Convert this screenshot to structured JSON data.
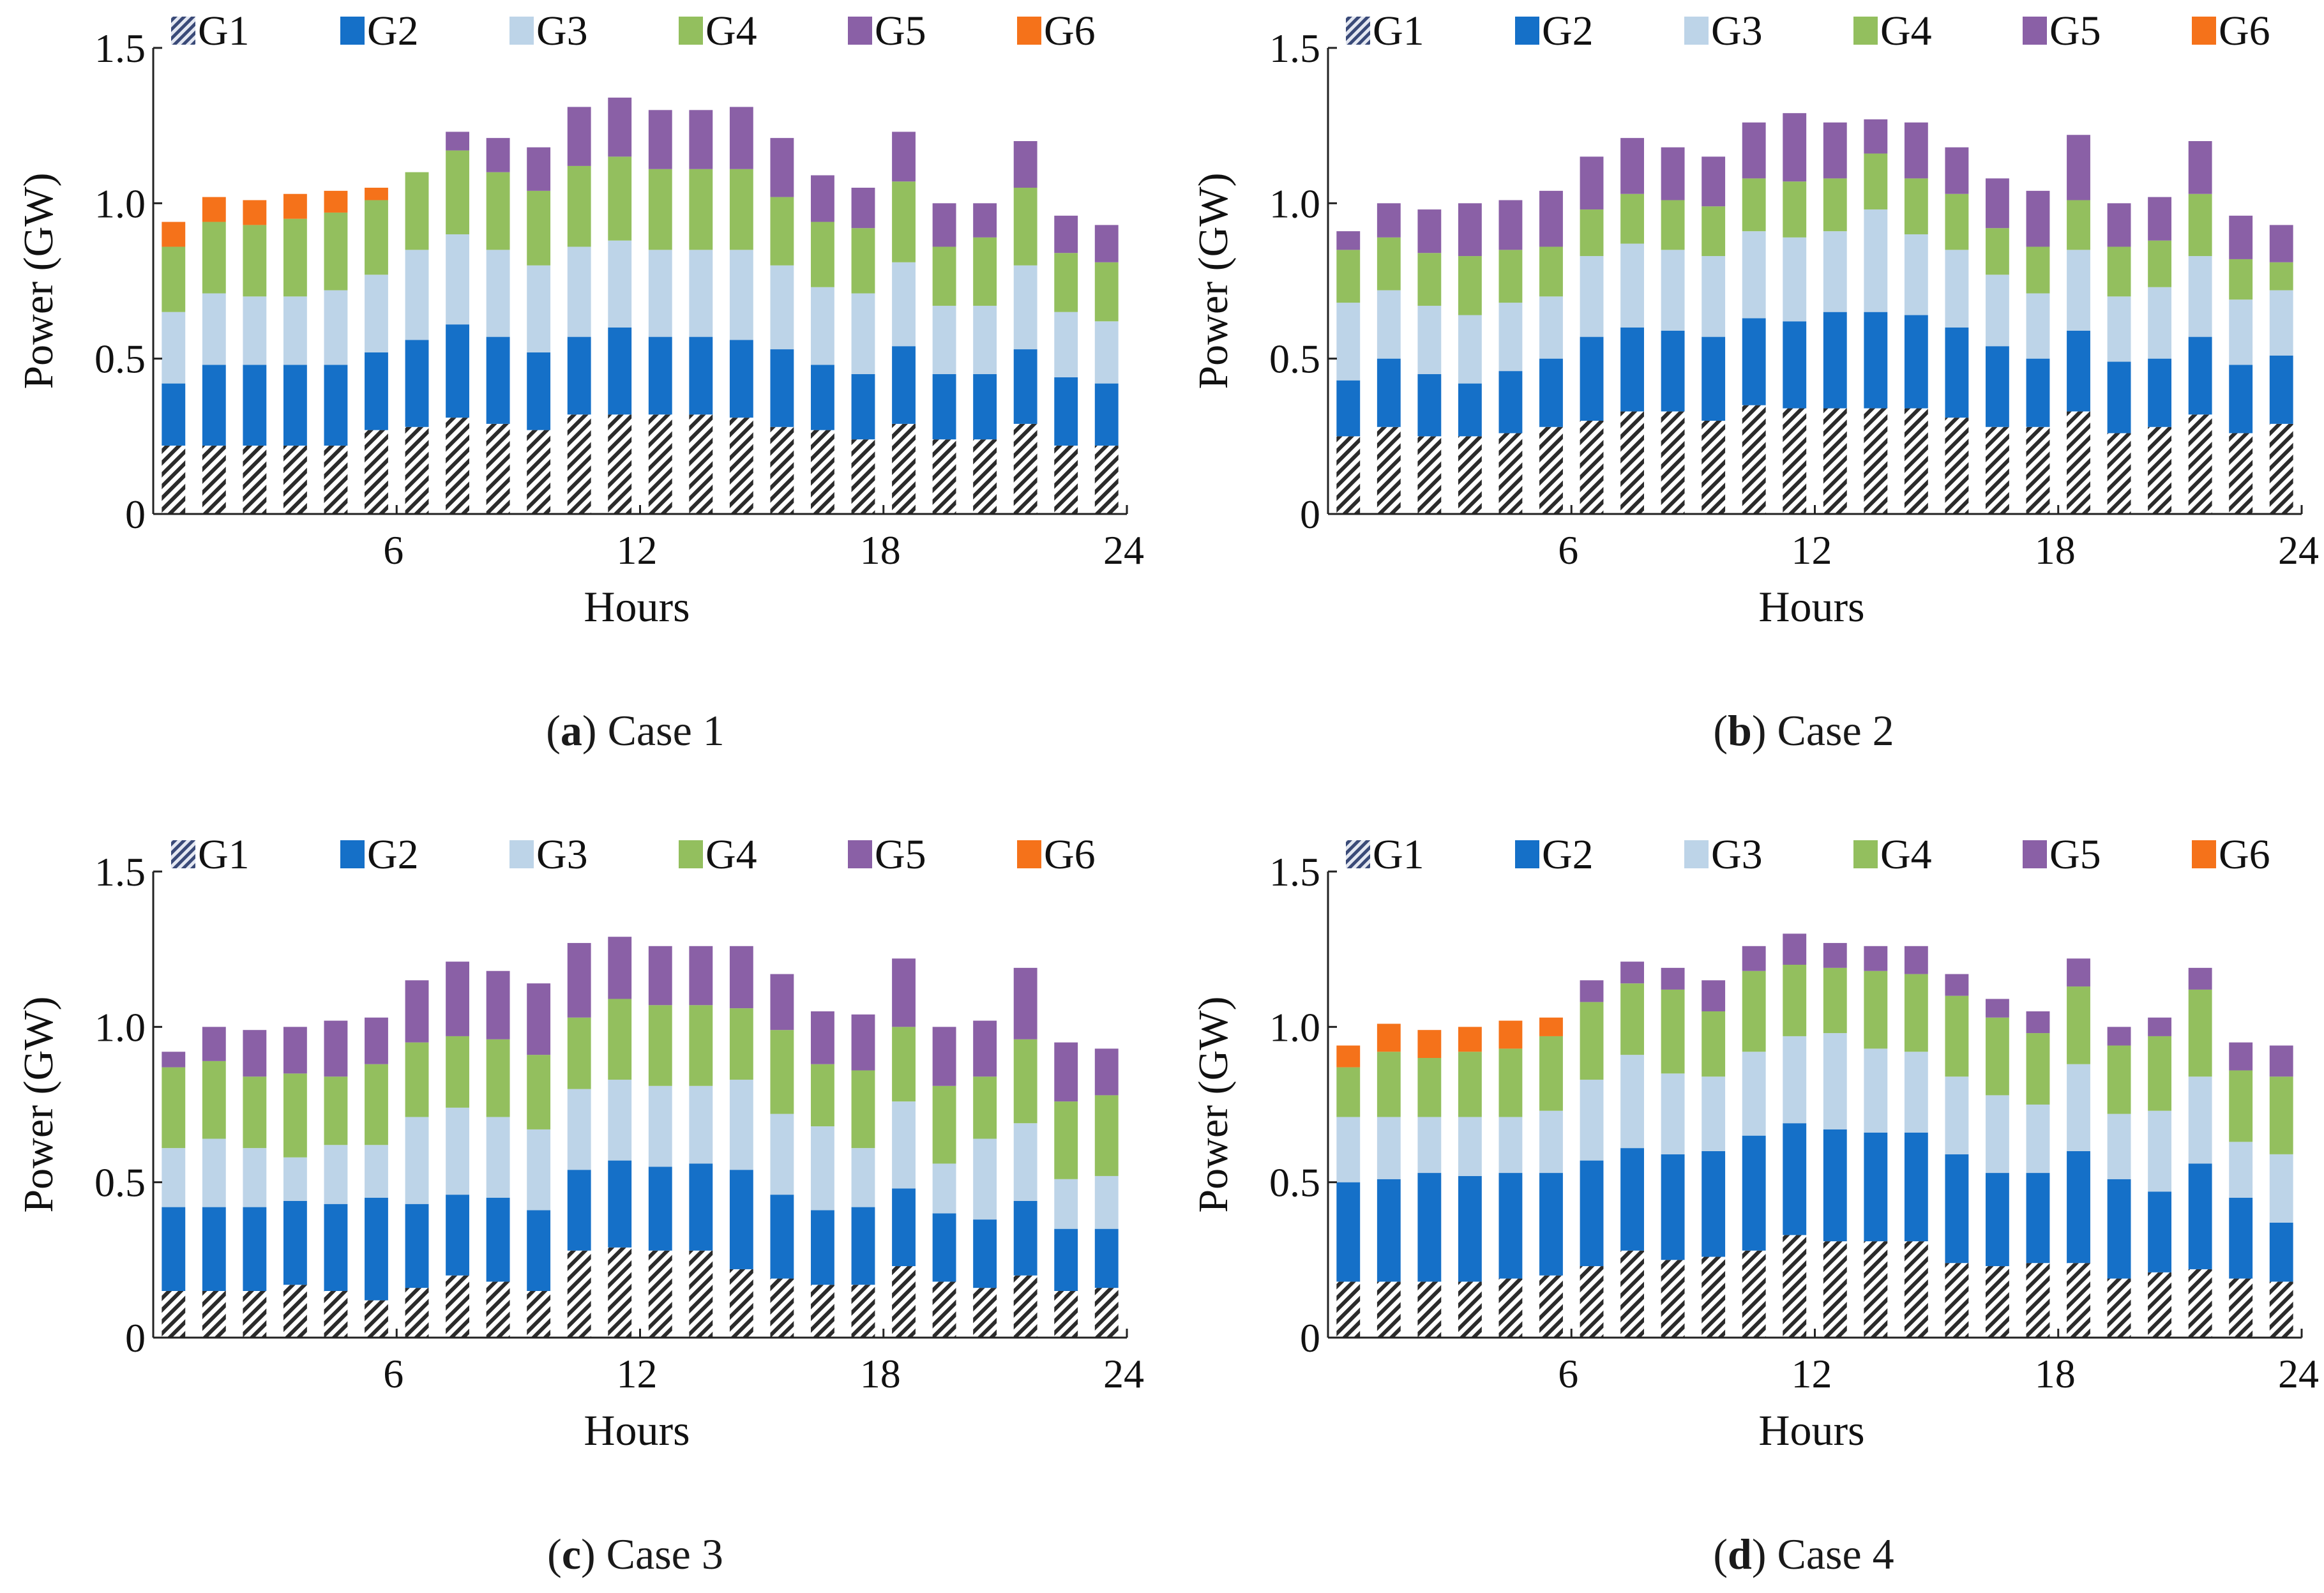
{
  "figure": {
    "colors": {
      "G1": "#b8c4dc",
      "G2": "#1570c8",
      "G3": "#bdd4e8",
      "G4": "#93bf5e",
      "G5": "#8a60a6",
      "G6": "#f5721a",
      "axis": "#222222"
    }
  },
  "chart_data": [
    {
      "id": "a",
      "type": "bar",
      "stacked": true,
      "caption_letter": "a",
      "caption_text": "Case 1",
      "xlabel": "Hours",
      "ylabel": "Power (GW)",
      "xticks": [
        "6",
        "12",
        "18",
        "24"
      ],
      "yticks": [
        "0",
        "0.5",
        "1.0",
        "1.5"
      ],
      "ylim": [
        0,
        1.5
      ],
      "categories": [
        1,
        2,
        3,
        4,
        5,
        6,
        7,
        8,
        9,
        10,
        11,
        12,
        13,
        14,
        15,
        16,
        17,
        18,
        19,
        20,
        21,
        22,
        23,
        24
      ],
      "legend": [
        "G1",
        "G2",
        "G3",
        "G4",
        "G5",
        "G6"
      ],
      "series": [
        {
          "name": "G1",
          "values": [
            0.22,
            0.22,
            0.22,
            0.22,
            0.22,
            0.27,
            0.28,
            0.31,
            0.29,
            0.27,
            0.32,
            0.32,
            0.32,
            0.32,
            0.31,
            0.28,
            0.27,
            0.24,
            0.29,
            0.24,
            0.24,
            0.29,
            0.22,
            0.22
          ]
        },
        {
          "name": "G2",
          "values": [
            0.2,
            0.26,
            0.26,
            0.26,
            0.26,
            0.25,
            0.28,
            0.3,
            0.28,
            0.25,
            0.25,
            0.28,
            0.25,
            0.25,
            0.25,
            0.25,
            0.21,
            0.21,
            0.25,
            0.21,
            0.21,
            0.24,
            0.22,
            0.2
          ]
        },
        {
          "name": "G3",
          "values": [
            0.23,
            0.23,
            0.22,
            0.22,
            0.24,
            0.25,
            0.29,
            0.29,
            0.28,
            0.28,
            0.29,
            0.28,
            0.28,
            0.28,
            0.29,
            0.27,
            0.25,
            0.26,
            0.27,
            0.22,
            0.22,
            0.27,
            0.21,
            0.2
          ]
        },
        {
          "name": "G4",
          "values": [
            0.21,
            0.23,
            0.23,
            0.25,
            0.25,
            0.24,
            0.25,
            0.27,
            0.25,
            0.24,
            0.26,
            0.27,
            0.26,
            0.26,
            0.26,
            0.22,
            0.21,
            0.21,
            0.26,
            0.19,
            0.22,
            0.25,
            0.19,
            0.19
          ]
        },
        {
          "name": "G5",
          "values": [
            0.0,
            0.0,
            0.0,
            0.0,
            0.0,
            0.0,
            0.0,
            0.06,
            0.11,
            0.14,
            0.19,
            0.19,
            0.19,
            0.19,
            0.2,
            0.19,
            0.15,
            0.13,
            0.16,
            0.14,
            0.11,
            0.15,
            0.12,
            0.12
          ]
        },
        {
          "name": "G6",
          "values": [
            0.08,
            0.08,
            0.08,
            0.08,
            0.07,
            0.04,
            0,
            0,
            0,
            0,
            0,
            0,
            0,
            0,
            0,
            0,
            0,
            0,
            0,
            0,
            0,
            0,
            0,
            0
          ]
        }
      ]
    },
    {
      "id": "b",
      "type": "bar",
      "stacked": true,
      "caption_letter": "b",
      "caption_text": "Case 2",
      "xlabel": "Hours",
      "ylabel": "Power (GW)",
      "xticks": [
        "6",
        "12",
        "18",
        "24"
      ],
      "yticks": [
        "0",
        "0.5",
        "1.0",
        "1.5"
      ],
      "ylim": [
        0,
        1.5
      ],
      "categories": [
        1,
        2,
        3,
        4,
        5,
        6,
        7,
        8,
        9,
        10,
        11,
        12,
        13,
        14,
        15,
        16,
        17,
        18,
        19,
        20,
        21,
        22,
        23,
        24
      ],
      "legend": [
        "G1",
        "G2",
        "G3",
        "G4",
        "G5",
        "G6"
      ],
      "series": [
        {
          "name": "G1",
          "values": [
            0.25,
            0.28,
            0.25,
            0.25,
            0.26,
            0.28,
            0.3,
            0.33,
            0.33,
            0.3,
            0.35,
            0.34,
            0.34,
            0.34,
            0.34,
            0.31,
            0.28,
            0.28,
            0.33,
            0.26,
            0.28,
            0.32,
            0.26,
            0.29
          ]
        },
        {
          "name": "G2",
          "values": [
            0.18,
            0.22,
            0.2,
            0.17,
            0.2,
            0.22,
            0.27,
            0.27,
            0.26,
            0.27,
            0.28,
            0.28,
            0.31,
            0.31,
            0.3,
            0.29,
            0.26,
            0.22,
            0.26,
            0.23,
            0.22,
            0.25,
            0.22,
            0.22
          ]
        },
        {
          "name": "G3",
          "values": [
            0.25,
            0.22,
            0.22,
            0.22,
            0.22,
            0.2,
            0.26,
            0.27,
            0.26,
            0.26,
            0.28,
            0.27,
            0.26,
            0.33,
            0.26,
            0.25,
            0.23,
            0.21,
            0.26,
            0.21,
            0.23,
            0.26,
            0.21,
            0.21
          ]
        },
        {
          "name": "G4",
          "values": [
            0.17,
            0.17,
            0.17,
            0.19,
            0.17,
            0.16,
            0.15,
            0.16,
            0.16,
            0.16,
            0.17,
            0.18,
            0.17,
            0.18,
            0.18,
            0.18,
            0.15,
            0.15,
            0.16,
            0.16,
            0.15,
            0.2,
            0.13,
            0.09
          ]
        },
        {
          "name": "G5",
          "values": [
            0.06,
            0.11,
            0.14,
            0.17,
            0.16,
            0.18,
            0.17,
            0.18,
            0.17,
            0.16,
            0.18,
            0.22,
            0.18,
            0.11,
            0.18,
            0.15,
            0.16,
            0.18,
            0.21,
            0.14,
            0.14,
            0.17,
            0.14,
            0.12
          ]
        },
        {
          "name": "G6",
          "values": [
            0,
            0,
            0,
            0,
            0,
            0,
            0,
            0,
            0,
            0,
            0,
            0,
            0,
            0,
            0,
            0,
            0,
            0,
            0,
            0,
            0,
            0,
            0,
            0
          ]
        }
      ]
    },
    {
      "id": "c",
      "type": "bar",
      "stacked": true,
      "caption_letter": "c",
      "caption_text": "Case 3",
      "xlabel": "Hours",
      "ylabel": "Power (GW)",
      "xticks": [
        "6",
        "12",
        "18",
        "24"
      ],
      "yticks": [
        "0",
        "0.5",
        "1.0",
        "1.5"
      ],
      "ylim": [
        0,
        1.5
      ],
      "categories": [
        1,
        2,
        3,
        4,
        5,
        6,
        7,
        8,
        9,
        10,
        11,
        12,
        13,
        14,
        15,
        16,
        17,
        18,
        19,
        20,
        21,
        22,
        23,
        24
      ],
      "legend": [
        "G1",
        "G2",
        "G3",
        "G4",
        "G5",
        "G6"
      ],
      "series": [
        {
          "name": "G1",
          "values": [
            0.15,
            0.15,
            0.15,
            0.17,
            0.15,
            0.12,
            0.16,
            0.2,
            0.18,
            0.15,
            0.28,
            0.29,
            0.28,
            0.28,
            0.22,
            0.19,
            0.17,
            0.17,
            0.23,
            0.18,
            0.16,
            0.2,
            0.15,
            0.16
          ]
        },
        {
          "name": "G2",
          "values": [
            0.27,
            0.27,
            0.27,
            0.27,
            0.28,
            0.33,
            0.27,
            0.26,
            0.27,
            0.26,
            0.26,
            0.28,
            0.27,
            0.28,
            0.32,
            0.27,
            0.24,
            0.25,
            0.25,
            0.22,
            0.22,
            0.24,
            0.2,
            0.19
          ]
        },
        {
          "name": "G3",
          "values": [
            0.19,
            0.22,
            0.19,
            0.14,
            0.19,
            0.17,
            0.28,
            0.28,
            0.26,
            0.26,
            0.26,
            0.26,
            0.26,
            0.25,
            0.29,
            0.26,
            0.27,
            0.19,
            0.28,
            0.16,
            0.26,
            0.25,
            0.16,
            0.17
          ]
        },
        {
          "name": "G4",
          "values": [
            0.26,
            0.25,
            0.23,
            0.27,
            0.22,
            0.26,
            0.24,
            0.23,
            0.25,
            0.24,
            0.23,
            0.26,
            0.26,
            0.26,
            0.23,
            0.27,
            0.2,
            0.25,
            0.24,
            0.25,
            0.2,
            0.27,
            0.25,
            0.26
          ]
        },
        {
          "name": "G5",
          "values": [
            0.05,
            0.11,
            0.15,
            0.15,
            0.18,
            0.15,
            0.2,
            0.24,
            0.22,
            0.23,
            0.24,
            0.2,
            0.19,
            0.19,
            0.2,
            0.18,
            0.17,
            0.18,
            0.22,
            0.19,
            0.18,
            0.23,
            0.19,
            0.15
          ]
        },
        {
          "name": "G6",
          "values": [
            0,
            0,
            0,
            0,
            0,
            0,
            0,
            0,
            0,
            0,
            0,
            0,
            0,
            0,
            0,
            0,
            0,
            0,
            0,
            0,
            0,
            0,
            0,
            0
          ]
        }
      ]
    },
    {
      "id": "d",
      "type": "bar",
      "stacked": true,
      "caption_letter": "d",
      "caption_text": "Case 4",
      "xlabel": "Hours",
      "ylabel": "Power (GW)",
      "xticks": [
        "6",
        "12",
        "18",
        "24"
      ],
      "yticks": [
        "0",
        "0.5",
        "1.0",
        "1.5"
      ],
      "ylim": [
        0,
        1.5
      ],
      "categories": [
        1,
        2,
        3,
        4,
        5,
        6,
        7,
        8,
        9,
        10,
        11,
        12,
        13,
        14,
        15,
        16,
        17,
        18,
        19,
        20,
        21,
        22,
        23,
        24
      ],
      "legend": [
        "G1",
        "G2",
        "G3",
        "G4",
        "G5",
        "G6"
      ],
      "series": [
        {
          "name": "G1",
          "values": [
            0.18,
            0.18,
            0.18,
            0.18,
            0.19,
            0.2,
            0.23,
            0.28,
            0.25,
            0.26,
            0.28,
            0.33,
            0.31,
            0.31,
            0.31,
            0.24,
            0.23,
            0.24,
            0.24,
            0.19,
            0.21,
            0.22,
            0.19,
            0.18
          ]
        },
        {
          "name": "G2",
          "values": [
            0.32,
            0.33,
            0.35,
            0.34,
            0.34,
            0.33,
            0.34,
            0.33,
            0.34,
            0.34,
            0.37,
            0.36,
            0.36,
            0.35,
            0.35,
            0.35,
            0.3,
            0.29,
            0.36,
            0.32,
            0.26,
            0.34,
            0.26,
            0.19
          ]
        },
        {
          "name": "G3",
          "values": [
            0.21,
            0.2,
            0.18,
            0.19,
            0.18,
            0.2,
            0.26,
            0.3,
            0.26,
            0.24,
            0.27,
            0.28,
            0.31,
            0.27,
            0.26,
            0.25,
            0.25,
            0.22,
            0.28,
            0.21,
            0.26,
            0.28,
            0.18,
            0.22
          ]
        },
        {
          "name": "G4",
          "values": [
            0.16,
            0.21,
            0.19,
            0.21,
            0.22,
            0.24,
            0.25,
            0.23,
            0.27,
            0.21,
            0.26,
            0.23,
            0.21,
            0.25,
            0.25,
            0.26,
            0.25,
            0.23,
            0.25,
            0.22,
            0.24,
            0.28,
            0.23,
            0.25
          ]
        },
        {
          "name": "G5",
          "values": [
            0,
            0,
            0,
            0,
            0,
            0,
            0.07,
            0.07,
            0.07,
            0.1,
            0.08,
            0.1,
            0.08,
            0.08,
            0.09,
            0.07,
            0.06,
            0.07,
            0.09,
            0.06,
            0.06,
            0.07,
            0.09,
            0.1
          ]
        },
        {
          "name": "G6",
          "values": [
            0.07,
            0.09,
            0.09,
            0.08,
            0.09,
            0.06,
            0,
            0,
            0,
            0,
            0,
            0,
            0,
            0,
            0,
            0,
            0,
            0,
            0,
            0,
            0,
            0,
            0,
            0
          ]
        }
      ]
    }
  ]
}
